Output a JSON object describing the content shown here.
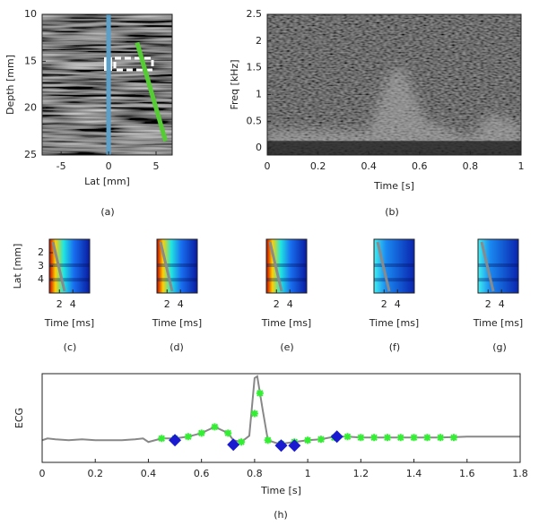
{
  "chart_data": [
    {
      "type": "image",
      "xlabel": "Lat [mm]",
      "ylabel": "Depth [mm]",
      "caption": "(a)",
      "xlim": [
        -7,
        6.7
      ],
      "xticks": [
        -5,
        0,
        5
      ],
      "ylim": [
        10,
        25
      ],
      "yticks": [
        10,
        15,
        20,
        25
      ],
      "yreverse": true,
      "series": [
        {
          "color": "#5aa0c8",
          "x": [
            0,
            0
          ],
          "values": [
            10,
            25
          ]
        },
        {
          "color": "#55cc33",
          "x": [
            3,
            6
          ],
          "values": [
            13,
            23.5
          ]
        }
      ]
    },
    {
      "type": "spectrogram",
      "xlabel": "Time [s]",
      "ylabel": "Freq [kHz]",
      "caption": "(b)",
      "xlim": [
        0,
        1
      ],
      "xticks": [
        0,
        0.2,
        0.4,
        0.6,
        0.8,
        1
      ],
      "ylim": [
        -0.13,
        2.5
      ],
      "yticks": [
        0,
        0.5,
        1,
        1.5,
        2,
        2.5
      ]
    },
    {
      "type": "heatmap",
      "xlabel": "Time [ms]",
      "ylabel": "Lat [mm]",
      "caption": "(c)",
      "xlim": [
        0.5,
        6.5
      ],
      "xticks": [
        2,
        4
      ],
      "ylim": [
        1,
        5
      ],
      "yticks": [
        2,
        3,
        4
      ],
      "yreverse": true
    },
    {
      "type": "heatmap",
      "xlabel": "Time [ms]",
      "caption": "(d)",
      "xlim": [
        0.5,
        6.5
      ],
      "xticks": [
        2,
        4
      ]
    },
    {
      "type": "heatmap",
      "xlabel": "Time [ms]",
      "caption": "(e)",
      "xlim": [
        0.5,
        6.5
      ],
      "xticks": [
        2,
        4
      ]
    },
    {
      "type": "heatmap",
      "xlabel": "Time [ms]",
      "caption": "(f)",
      "xlim": [
        0.5,
        6.5
      ],
      "xticks": [
        2,
        4
      ]
    },
    {
      "type": "heatmap",
      "xlabel": "Time [ms]",
      "caption": "(g)",
      "xlim": [
        0.5,
        6.5
      ],
      "xticks": [
        2,
        4
      ]
    },
    {
      "type": "line",
      "xlabel": "Time [s]",
      "ylabel": "ECG",
      "caption": "(h)",
      "xlim": [
        0,
        1.8
      ],
      "xticks": [
        0,
        0.2,
        0.4,
        0.6,
        0.8,
        1,
        1.2,
        1.4,
        1.6,
        1.8
      ],
      "ylim": [
        0,
        1
      ],
      "series": [
        {
          "color": "#888888",
          "marker": "none",
          "x": [
            0,
            0.02,
            0.05,
            0.1,
            0.15,
            0.2,
            0.3,
            0.35,
            0.38,
            0.4,
            0.45,
            0.5,
            0.55,
            0.6,
            0.65,
            0.7,
            0.72,
            0.75,
            0.78,
            0.8,
            0.81,
            0.83,
            0.85,
            0.88,
            0.9,
            0.95,
            1.0,
            1.05,
            1.1,
            1.15,
            1.2,
            1.3,
            1.4,
            1.5,
            1.6,
            1.7,
            1.8
          ],
          "values": [
            0.25,
            0.27,
            0.26,
            0.25,
            0.26,
            0.25,
            0.25,
            0.26,
            0.27,
            0.23,
            0.27,
            0.27,
            0.29,
            0.33,
            0.4,
            0.33,
            0.25,
            0.23,
            0.3,
            0.95,
            0.97,
            0.6,
            0.25,
            0.22,
            0.21,
            0.23,
            0.25,
            0.26,
            0.29,
            0.29,
            0.28,
            0.28,
            0.28,
            0.28,
            0.29,
            0.29,
            0.29
          ]
        },
        {
          "color": "#33ee33",
          "marker": "star",
          "x": [
            0.45,
            0.5,
            0.55,
            0.6,
            0.65,
            0.7,
            0.75,
            0.8,
            0.82,
            0.85,
            0.9,
            0.95,
            1.0,
            1.05,
            1.1,
            1.15,
            1.2,
            1.25,
            1.3,
            1.35,
            1.4,
            1.45,
            1.5,
            1.55
          ],
          "values": [
            0.27,
            0.27,
            0.29,
            0.33,
            0.4,
            0.33,
            0.23,
            0.55,
            0.78,
            0.25,
            0.21,
            0.23,
            0.25,
            0.26,
            0.28,
            0.29,
            0.28,
            0.28,
            0.28,
            0.28,
            0.28,
            0.28,
            0.28,
            0.28
          ]
        },
        {
          "color": "#1a1ad0",
          "marker": "diamond",
          "x": [
            0.5,
            0.72,
            0.9,
            0.95,
            1.11
          ],
          "values": [
            0.25,
            0.2,
            0.19,
            0.19,
            0.29
          ]
        }
      ]
    }
  ]
}
